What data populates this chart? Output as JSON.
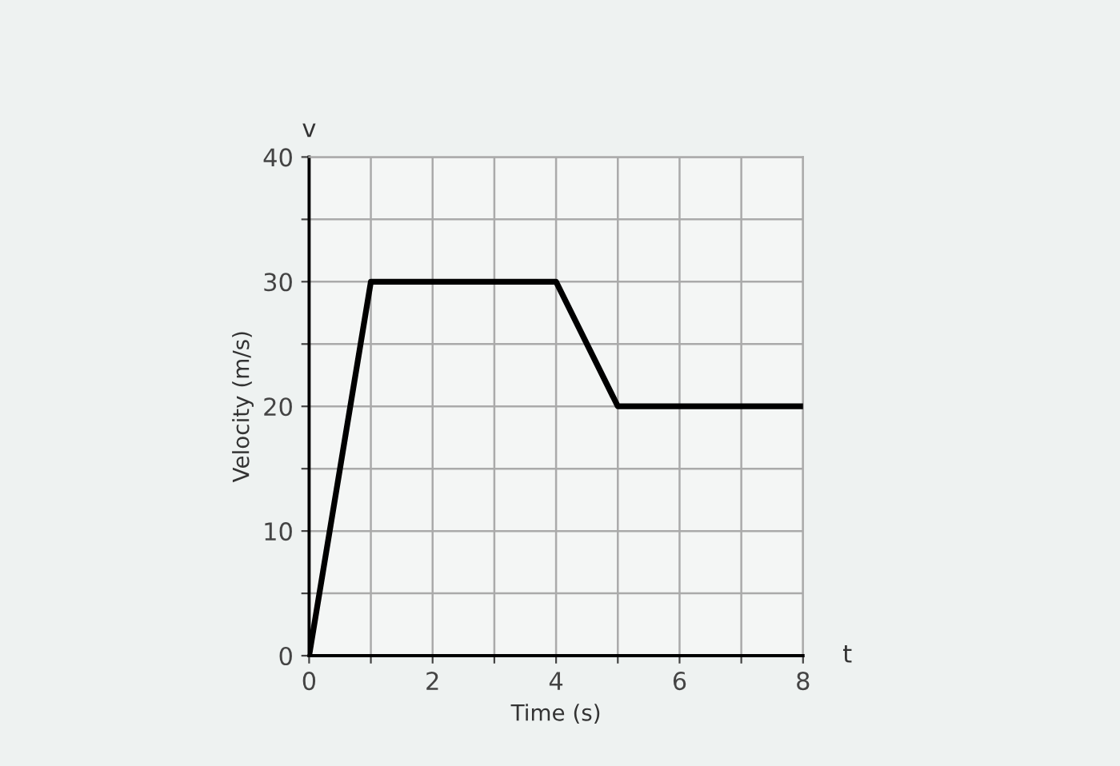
{
  "chart_data": {
    "type": "line",
    "xlabel": "Time (s)",
    "ylabel": "Velocity (m/s)",
    "x": [
      0,
      1,
      4,
      5,
      8
    ],
    "series": [
      {
        "color": "#000000",
        "values": [
          0,
          30,
          30,
          20,
          20
        ]
      }
    ],
    "xlim": [
      0,
      8
    ],
    "ylim": [
      0,
      40
    ],
    "xticks": [
      0,
      {
        "value": 1,
        "label": null
      },
      2,
      {
        "value": 3,
        "label": null
      },
      4,
      {
        "value": 5,
        "label": null
      },
      6,
      {
        "value": 7,
        "label": null
      },
      8
    ],
    "yticks": [
      0,
      {
        "value": 5,
        "label": null
      },
      10,
      {
        "value": 15,
        "label": null
      },
      20,
      {
        "value": 25,
        "label": null
      },
      30,
      {
        "value": 35,
        "label": null
      },
      40
    ],
    "grid": true,
    "marker": "none",
    "line_style": "solid",
    "annotations": [
      "v",
      "t"
    ]
  }
}
